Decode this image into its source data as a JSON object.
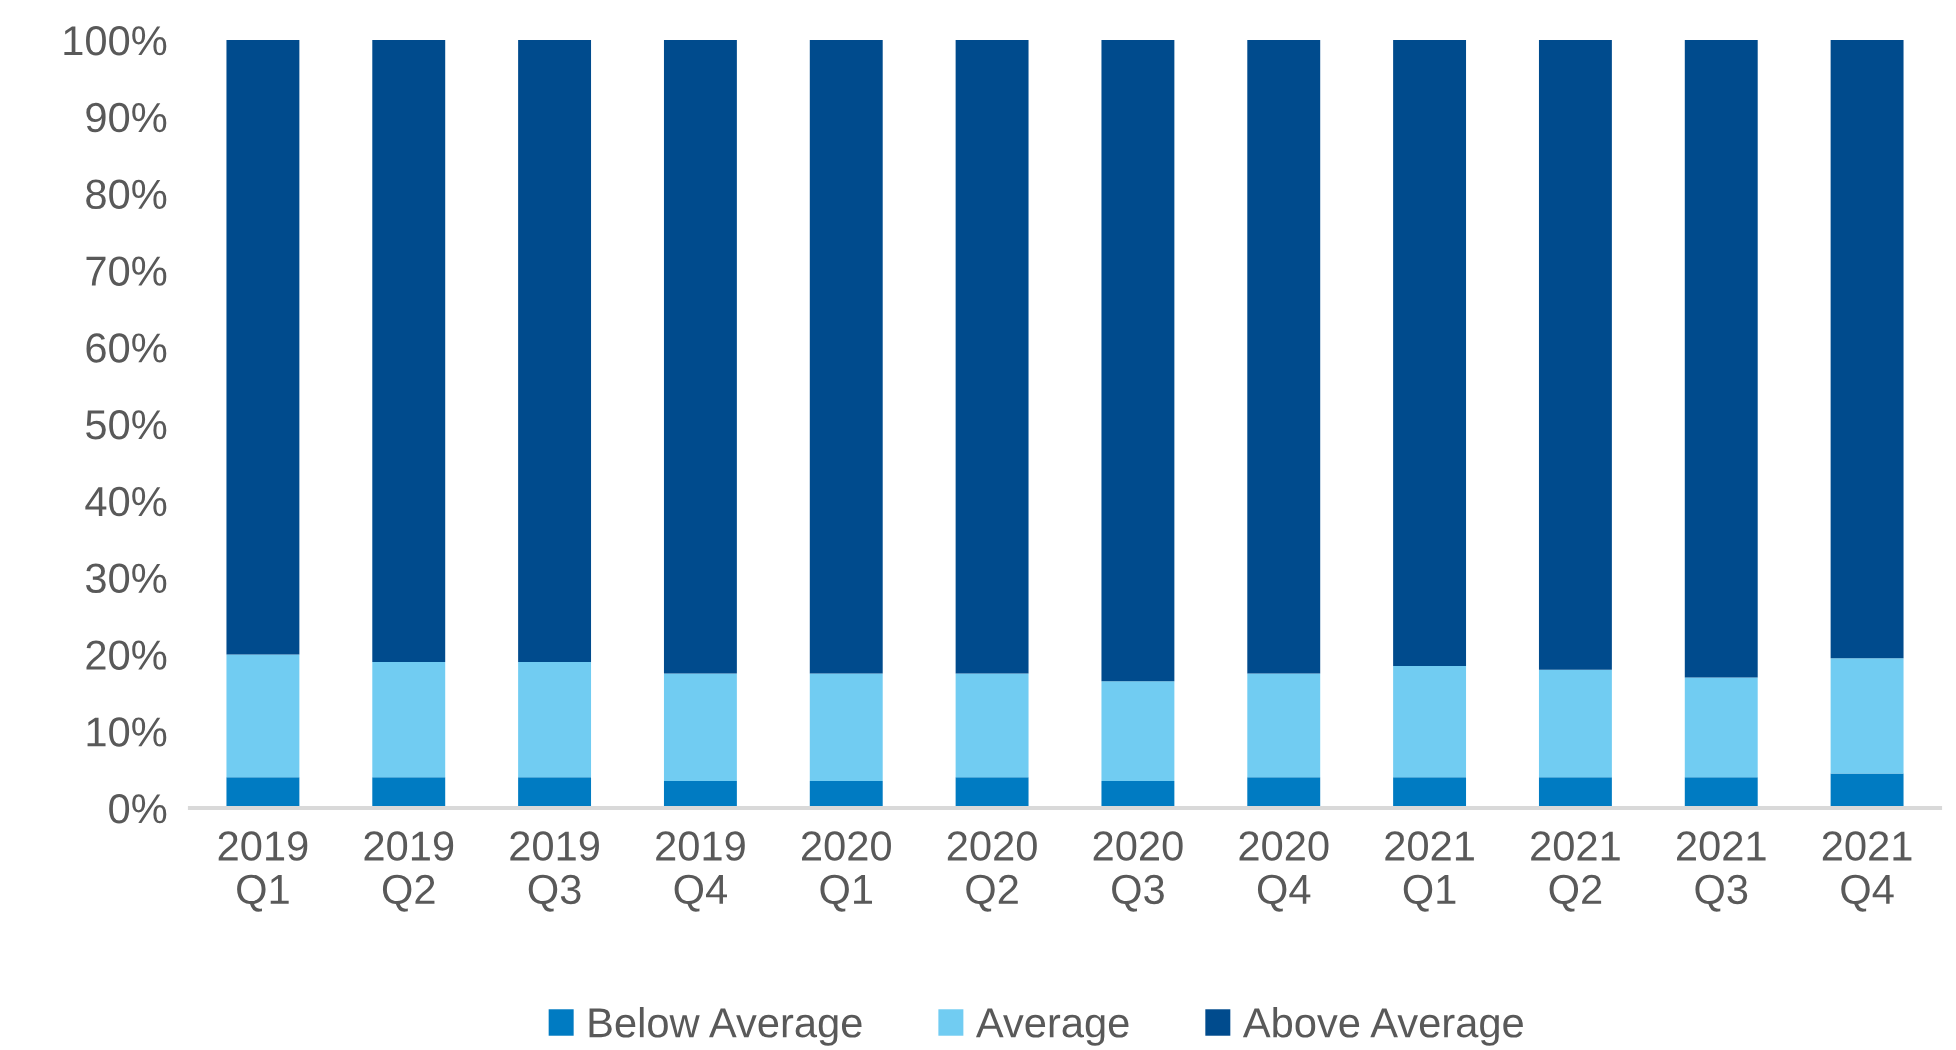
{
  "chart_data": {
    "type": "bar",
    "stacked": true,
    "categories": [
      "2019\nQ1",
      "2019\nQ2",
      "2019\nQ3",
      "2019\nQ4",
      "2020\nQ1",
      "2020\nQ2",
      "2020\nQ3",
      "2020\nQ4",
      "2021\nQ1",
      "2021\nQ2",
      "2021\nQ3",
      "2021\nQ4"
    ],
    "series": [
      {
        "name": "Below Average",
        "color": "#007bc2",
        "values": [
          4.0,
          4.0,
          4.0,
          3.5,
          3.5,
          4.0,
          3.5,
          4.0,
          4.0,
          4.0,
          4.0,
          4.5
        ]
      },
      {
        "name": "Average",
        "color": "#71ccf2",
        "values": [
          16.0,
          15.0,
          15.0,
          14.0,
          14.0,
          13.5,
          13.0,
          13.5,
          14.5,
          14.0,
          13.0,
          15.0
        ]
      },
      {
        "name": "Above Average",
        "color": "#004b8d",
        "values": [
          80.0,
          81.0,
          81.0,
          82.5,
          82.5,
          82.5,
          83.5,
          82.5,
          81.5,
          82.0,
          83.0,
          80.5
        ]
      }
    ],
    "ylim": [
      0,
      100
    ],
    "yticks": [
      {
        "value": 0,
        "label": "0%"
      },
      {
        "value": 10,
        "label": "10%"
      },
      {
        "value": 20,
        "label": "20%"
      },
      {
        "value": 30,
        "label": "30%"
      },
      {
        "value": 40,
        "label": "40%"
      },
      {
        "value": 50,
        "label": "50%"
      },
      {
        "value": 60,
        "label": "60%"
      },
      {
        "value": 70,
        "label": "70%"
      },
      {
        "value": 80,
        "label": "80%"
      },
      {
        "value": 90,
        "label": "90%"
      },
      {
        "value": 100,
        "label": "100%"
      }
    ],
    "legend": "bottom"
  }
}
